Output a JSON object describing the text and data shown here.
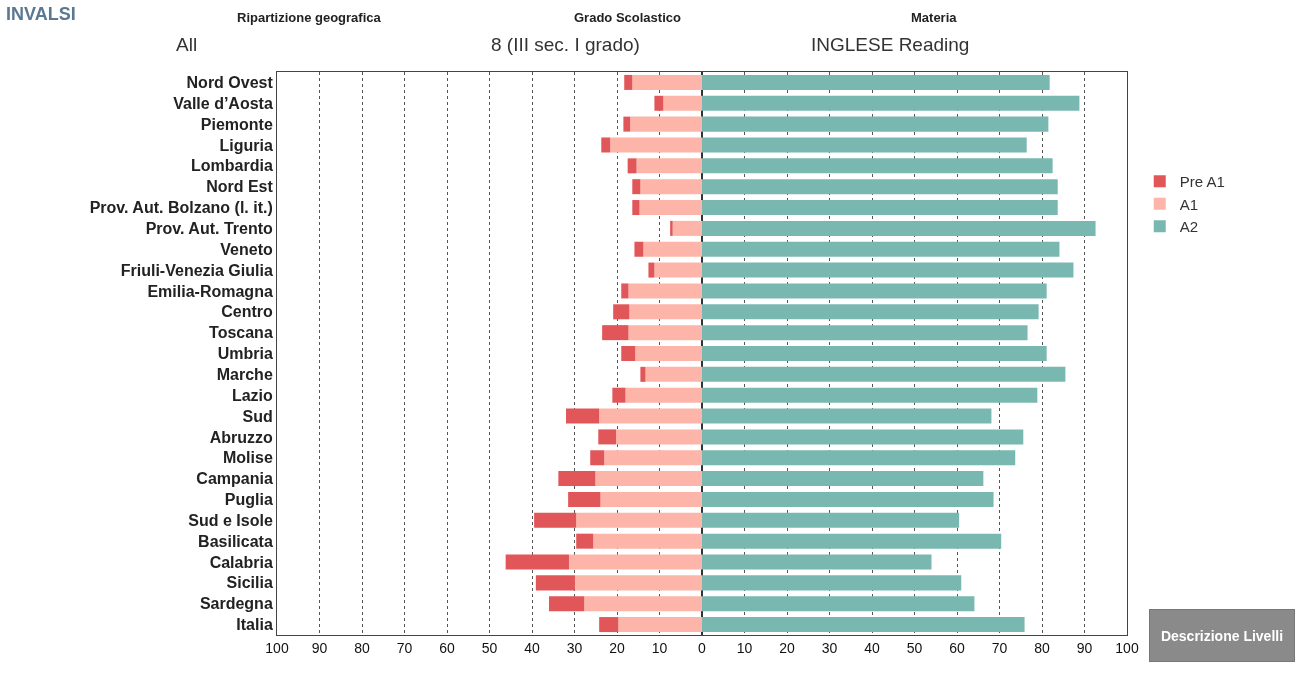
{
  "chart_data": {
    "type": "bar",
    "orientation": "horizontal",
    "stacked": true,
    "categories": [
      "Nord Ovest",
      "Valle d’Aosta",
      "Piemonte",
      "Liguria",
      "Lombardia",
      "Nord Est",
      "Prov. Aut. Bolzano (l. it.)",
      "Prov. Aut. Trento",
      "Veneto",
      "Friuli-Venezia Giulia",
      "Emilia-Romagna",
      "Centro",
      "Toscana",
      "Umbria",
      "Marche",
      "Lazio",
      "Sud",
      "Abruzzo",
      "Molise",
      "Campania",
      "Puglia",
      "Sud e Isole",
      "Basilicata",
      "Calabria",
      "Sicilia",
      "Sardegna",
      "Italia"
    ],
    "series": [
      {
        "name": "A1",
        "color": "#fdb5a9",
        "values": [
          -16.4,
          -9.1,
          -16.9,
          -21.6,
          -15.4,
          -14.5,
          -14.7,
          -6.9,
          -13.8,
          -11.2,
          -17.3,
          -17.1,
          -17.3,
          -15.7,
          -13.3,
          -18.0,
          -24.2,
          -20.2,
          -23.0,
          -25.1,
          -23.9,
          -29.6,
          -25.6,
          -31.3,
          -29.9,
          -27.7,
          -19.7
        ]
      },
      {
        "name": "Pre A1",
        "color": "#e15759",
        "values": [
          -1.9,
          -2.1,
          -1.6,
          -2.1,
          -2.1,
          -1.9,
          -1.7,
          -0.6,
          -2.1,
          -1.4,
          -1.7,
          -3.8,
          -6.2,
          -3.3,
          -1.2,
          -3.1,
          -7.8,
          -4.2,
          -3.3,
          -8.7,
          -7.6,
          -9.9,
          -4.0,
          -14.9,
          -9.2,
          -8.3,
          -4.5
        ]
      },
      {
        "name": "A2",
        "color": "#79b8b1",
        "values": [
          81.8,
          88.8,
          81.5,
          76.4,
          82.5,
          83.7,
          83.7,
          92.6,
          84.1,
          87.4,
          81.1,
          79.2,
          76.6,
          81.1,
          85.5,
          78.9,
          68.1,
          75.6,
          73.7,
          66.2,
          68.6,
          60.5,
          70.4,
          54.0,
          61.0,
          64.1,
          75.9
        ]
      }
    ],
    "xlim": [
      -100,
      100
    ],
    "xticks": [
      {
        "value": -100,
        "label": "100"
      },
      {
        "value": -90,
        "label": "90"
      },
      {
        "value": -80,
        "label": "80"
      },
      {
        "value": -70,
        "label": "70"
      },
      {
        "value": -60,
        "label": "60"
      },
      {
        "value": -50,
        "label": "50"
      },
      {
        "value": -40,
        "label": "40"
      },
      {
        "value": -30,
        "label": "30"
      },
      {
        "value": -20,
        "label": "20"
      },
      {
        "value": -10,
        "label": "10"
      },
      0,
      10,
      20,
      30,
      40,
      50,
      60,
      70,
      80,
      90,
      100
    ],
    "grid": "x",
    "legend": "top right",
    "annotations": [
      "INVALSI",
      "Ripartizione geografica",
      "All",
      "Grado Scolastico",
      "8 (III sec. I grado)",
      "Materia",
      "INGLESE Reading",
      "Descrizione Livelli"
    ]
  }
}
